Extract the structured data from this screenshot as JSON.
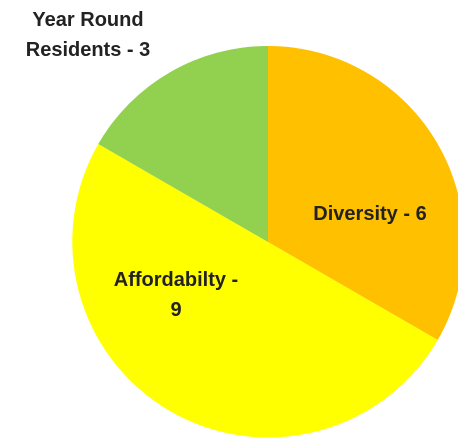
{
  "chart_data": {
    "type": "pie",
    "title": "",
    "slices": [
      {
        "label_lines": [
          "Diversity - 6"
        ],
        "category": "Diversity",
        "value": 6,
        "color": "#FFC000"
      },
      {
        "label_lines": [
          "Affordabilty -",
          "9"
        ],
        "category": "Affordabilty",
        "value": 9,
        "color": "#FFFF00"
      },
      {
        "label_lines": [
          "Year Round",
          "Residents - 3"
        ],
        "category": "Year Round Residents",
        "value": 3,
        "color": "#92D050"
      }
    ],
    "start_angle_deg": 0,
    "direction": "clockwise",
    "legend": "none",
    "data_labels": "category-and-value"
  }
}
